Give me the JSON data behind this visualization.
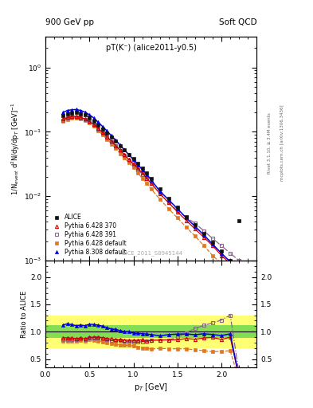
{
  "title_top": "900 GeV pp",
  "title_top_right": "Soft QCD",
  "inner_title": "pT(K⁻) (alice2011-y0.5)",
  "watermark": "ALICE_2011_S8945144",
  "right_label_top": "Rivet 3.1.10, ≥ 3.4M events",
  "right_label_bot": "mcplots.cern.ch [arXiv:1306.3436]",
  "ylabel_main": "1/N$_{event}$ d$^{2}$N/dy/dp$_{T}$ [GeV]$^{-1}$",
  "ylabel_ratio": "Ratio to ALICE",
  "xlabel": "p$_{T}$ [GeV]",
  "xlim": [
    0.0,
    2.4
  ],
  "ylim_main": [
    0.001,
    3.0
  ],
  "ylim_ratio": [
    0.35,
    2.3
  ],
  "alice_pt": [
    0.2,
    0.25,
    0.3,
    0.35,
    0.4,
    0.45,
    0.5,
    0.55,
    0.6,
    0.65,
    0.7,
    0.75,
    0.8,
    0.85,
    0.9,
    0.95,
    1.0,
    1.05,
    1.1,
    1.15,
    1.2,
    1.3,
    1.4,
    1.5,
    1.6,
    1.7,
    1.8,
    1.9,
    2.0,
    2.1,
    2.2
  ],
  "alice_y": [
    0.178,
    0.188,
    0.195,
    0.2,
    0.192,
    0.182,
    0.162,
    0.145,
    0.126,
    0.11,
    0.096,
    0.083,
    0.071,
    0.061,
    0.052,
    0.044,
    0.038,
    0.032,
    0.027,
    0.023,
    0.019,
    0.013,
    0.0093,
    0.0067,
    0.0048,
    0.0036,
    0.0026,
    0.0019,
    0.0014,
    0.001,
    0.0042
  ],
  "py6_370_pt": [
    0.2,
    0.25,
    0.3,
    0.35,
    0.4,
    0.45,
    0.5,
    0.55,
    0.6,
    0.65,
    0.7,
    0.75,
    0.8,
    0.85,
    0.9,
    0.95,
    1.0,
    1.05,
    1.1,
    1.15,
    1.2,
    1.3,
    1.4,
    1.5,
    1.6,
    1.7,
    1.8,
    1.9,
    2.0,
    2.1,
    2.2
  ],
  "py6_370_y": [
    0.158,
    0.167,
    0.172,
    0.175,
    0.169,
    0.158,
    0.145,
    0.13,
    0.113,
    0.098,
    0.084,
    0.072,
    0.061,
    0.052,
    0.044,
    0.037,
    0.032,
    0.027,
    0.023,
    0.019,
    0.016,
    0.011,
    0.0079,
    0.0057,
    0.0042,
    0.0031,
    0.0023,
    0.0017,
    0.0012,
    0.0009,
    0.00066
  ],
  "py6_391_pt": [
    0.2,
    0.25,
    0.3,
    0.35,
    0.4,
    0.45,
    0.5,
    0.55,
    0.6,
    0.65,
    0.7,
    0.75,
    0.8,
    0.85,
    0.9,
    0.95,
    1.0,
    1.05,
    1.1,
    1.15,
    1.2,
    1.3,
    1.4,
    1.5,
    1.6,
    1.7,
    1.8,
    1.9,
    2.0,
    2.1,
    2.2
  ],
  "py6_391_y": [
    0.152,
    0.162,
    0.168,
    0.171,
    0.166,
    0.156,
    0.143,
    0.128,
    0.111,
    0.096,
    0.082,
    0.07,
    0.06,
    0.051,
    0.043,
    0.036,
    0.031,
    0.026,
    0.022,
    0.019,
    0.016,
    0.011,
    0.0079,
    0.006,
    0.0047,
    0.0038,
    0.0029,
    0.0022,
    0.0017,
    0.0013,
    0.001
  ],
  "py6_def_pt": [
    0.2,
    0.25,
    0.3,
    0.35,
    0.4,
    0.45,
    0.5,
    0.55,
    0.6,
    0.65,
    0.7,
    0.75,
    0.8,
    0.85,
    0.9,
    0.95,
    1.0,
    1.05,
    1.1,
    1.15,
    1.2,
    1.3,
    1.4,
    1.5,
    1.6,
    1.7,
    1.8,
    1.9,
    2.0,
    2.1,
    2.2
  ],
  "py6_def_y": [
    0.148,
    0.157,
    0.162,
    0.166,
    0.161,
    0.151,
    0.138,
    0.122,
    0.105,
    0.09,
    0.077,
    0.065,
    0.055,
    0.046,
    0.039,
    0.033,
    0.028,
    0.023,
    0.019,
    0.016,
    0.013,
    0.009,
    0.0064,
    0.0046,
    0.0033,
    0.0024,
    0.0017,
    0.0012,
    0.0009,
    0.00065,
    0.00047
  ],
  "py8_def_pt": [
    0.2,
    0.25,
    0.3,
    0.35,
    0.4,
    0.45,
    0.5,
    0.55,
    0.6,
    0.65,
    0.7,
    0.75,
    0.8,
    0.85,
    0.9,
    0.95,
    1.0,
    1.05,
    1.1,
    1.15,
    1.2,
    1.3,
    1.4,
    1.5,
    1.6,
    1.7,
    1.8,
    1.9,
    2.0,
    2.1,
    2.2
  ],
  "py8_def_y": [
    0.2,
    0.215,
    0.22,
    0.222,
    0.215,
    0.202,
    0.184,
    0.164,
    0.141,
    0.121,
    0.103,
    0.087,
    0.074,
    0.062,
    0.052,
    0.044,
    0.037,
    0.031,
    0.026,
    0.022,
    0.018,
    0.012,
    0.0088,
    0.0064,
    0.0046,
    0.0034,
    0.0025,
    0.0018,
    0.0013,
    0.00096,
    0.00071
  ],
  "ratio_alice_band_yellow": 0.3,
  "ratio_alice_band_green": 0.12,
  "color_alice": "#111111",
  "color_py6_370": "#cc0000",
  "color_py6_391": "#886688",
  "color_py6_def": "#e07820",
  "color_py8_def": "#0000dd",
  "color_band_yellow": "#ffff44",
  "color_band_green": "#44cc44"
}
